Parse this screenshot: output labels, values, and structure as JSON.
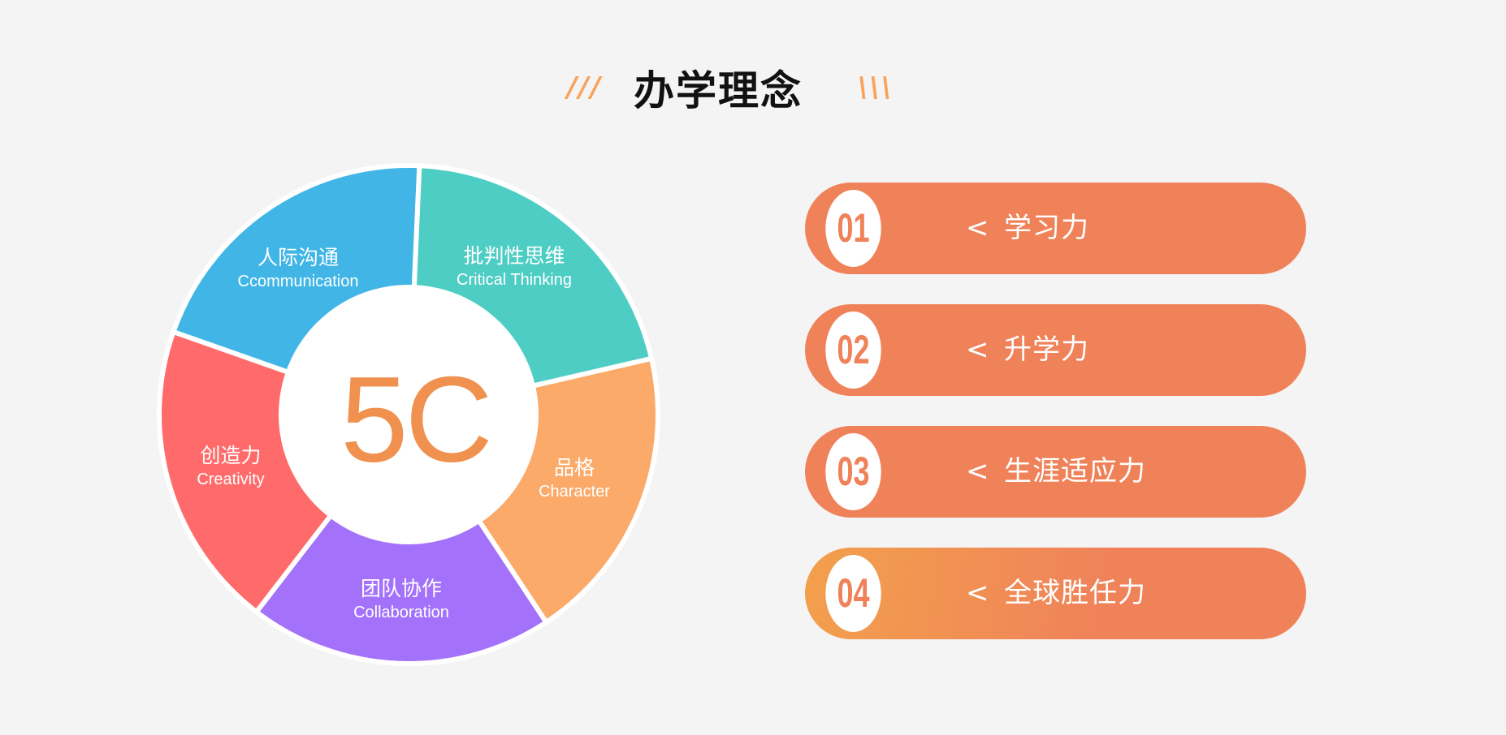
{
  "header": {
    "title": "办学理念",
    "left_deco": "///",
    "right_deco": "\\\\\\"
  },
  "wheel": {
    "center_label": "5C",
    "segments": [
      {
        "cn": "人际沟通",
        "en": "Ccommunication",
        "color": "#41B6E6"
      },
      {
        "cn": "批判性思维",
        "en": "Critical Thinking",
        "color": "#4ECDC4"
      },
      {
        "cn": "品格",
        "en": "Character",
        "color": "#FBAA6A"
      },
      {
        "cn": "团队协作",
        "en": "Collaboration",
        "color": "#A472FA"
      },
      {
        "cn": "创造力",
        "en": "Creativity",
        "color": "#FF6B6B"
      }
    ]
  },
  "list": {
    "items": [
      {
        "number": "01",
        "chevron": "<",
        "label": "学习力"
      },
      {
        "number": "02",
        "chevron": "<",
        "label": "升学力"
      },
      {
        "number": "03",
        "chevron": "<",
        "label": "生涯适应力"
      },
      {
        "number": "04",
        "chevron": "<",
        "label": "全球胜任力"
      }
    ],
    "accent": "#F0825A"
  }
}
